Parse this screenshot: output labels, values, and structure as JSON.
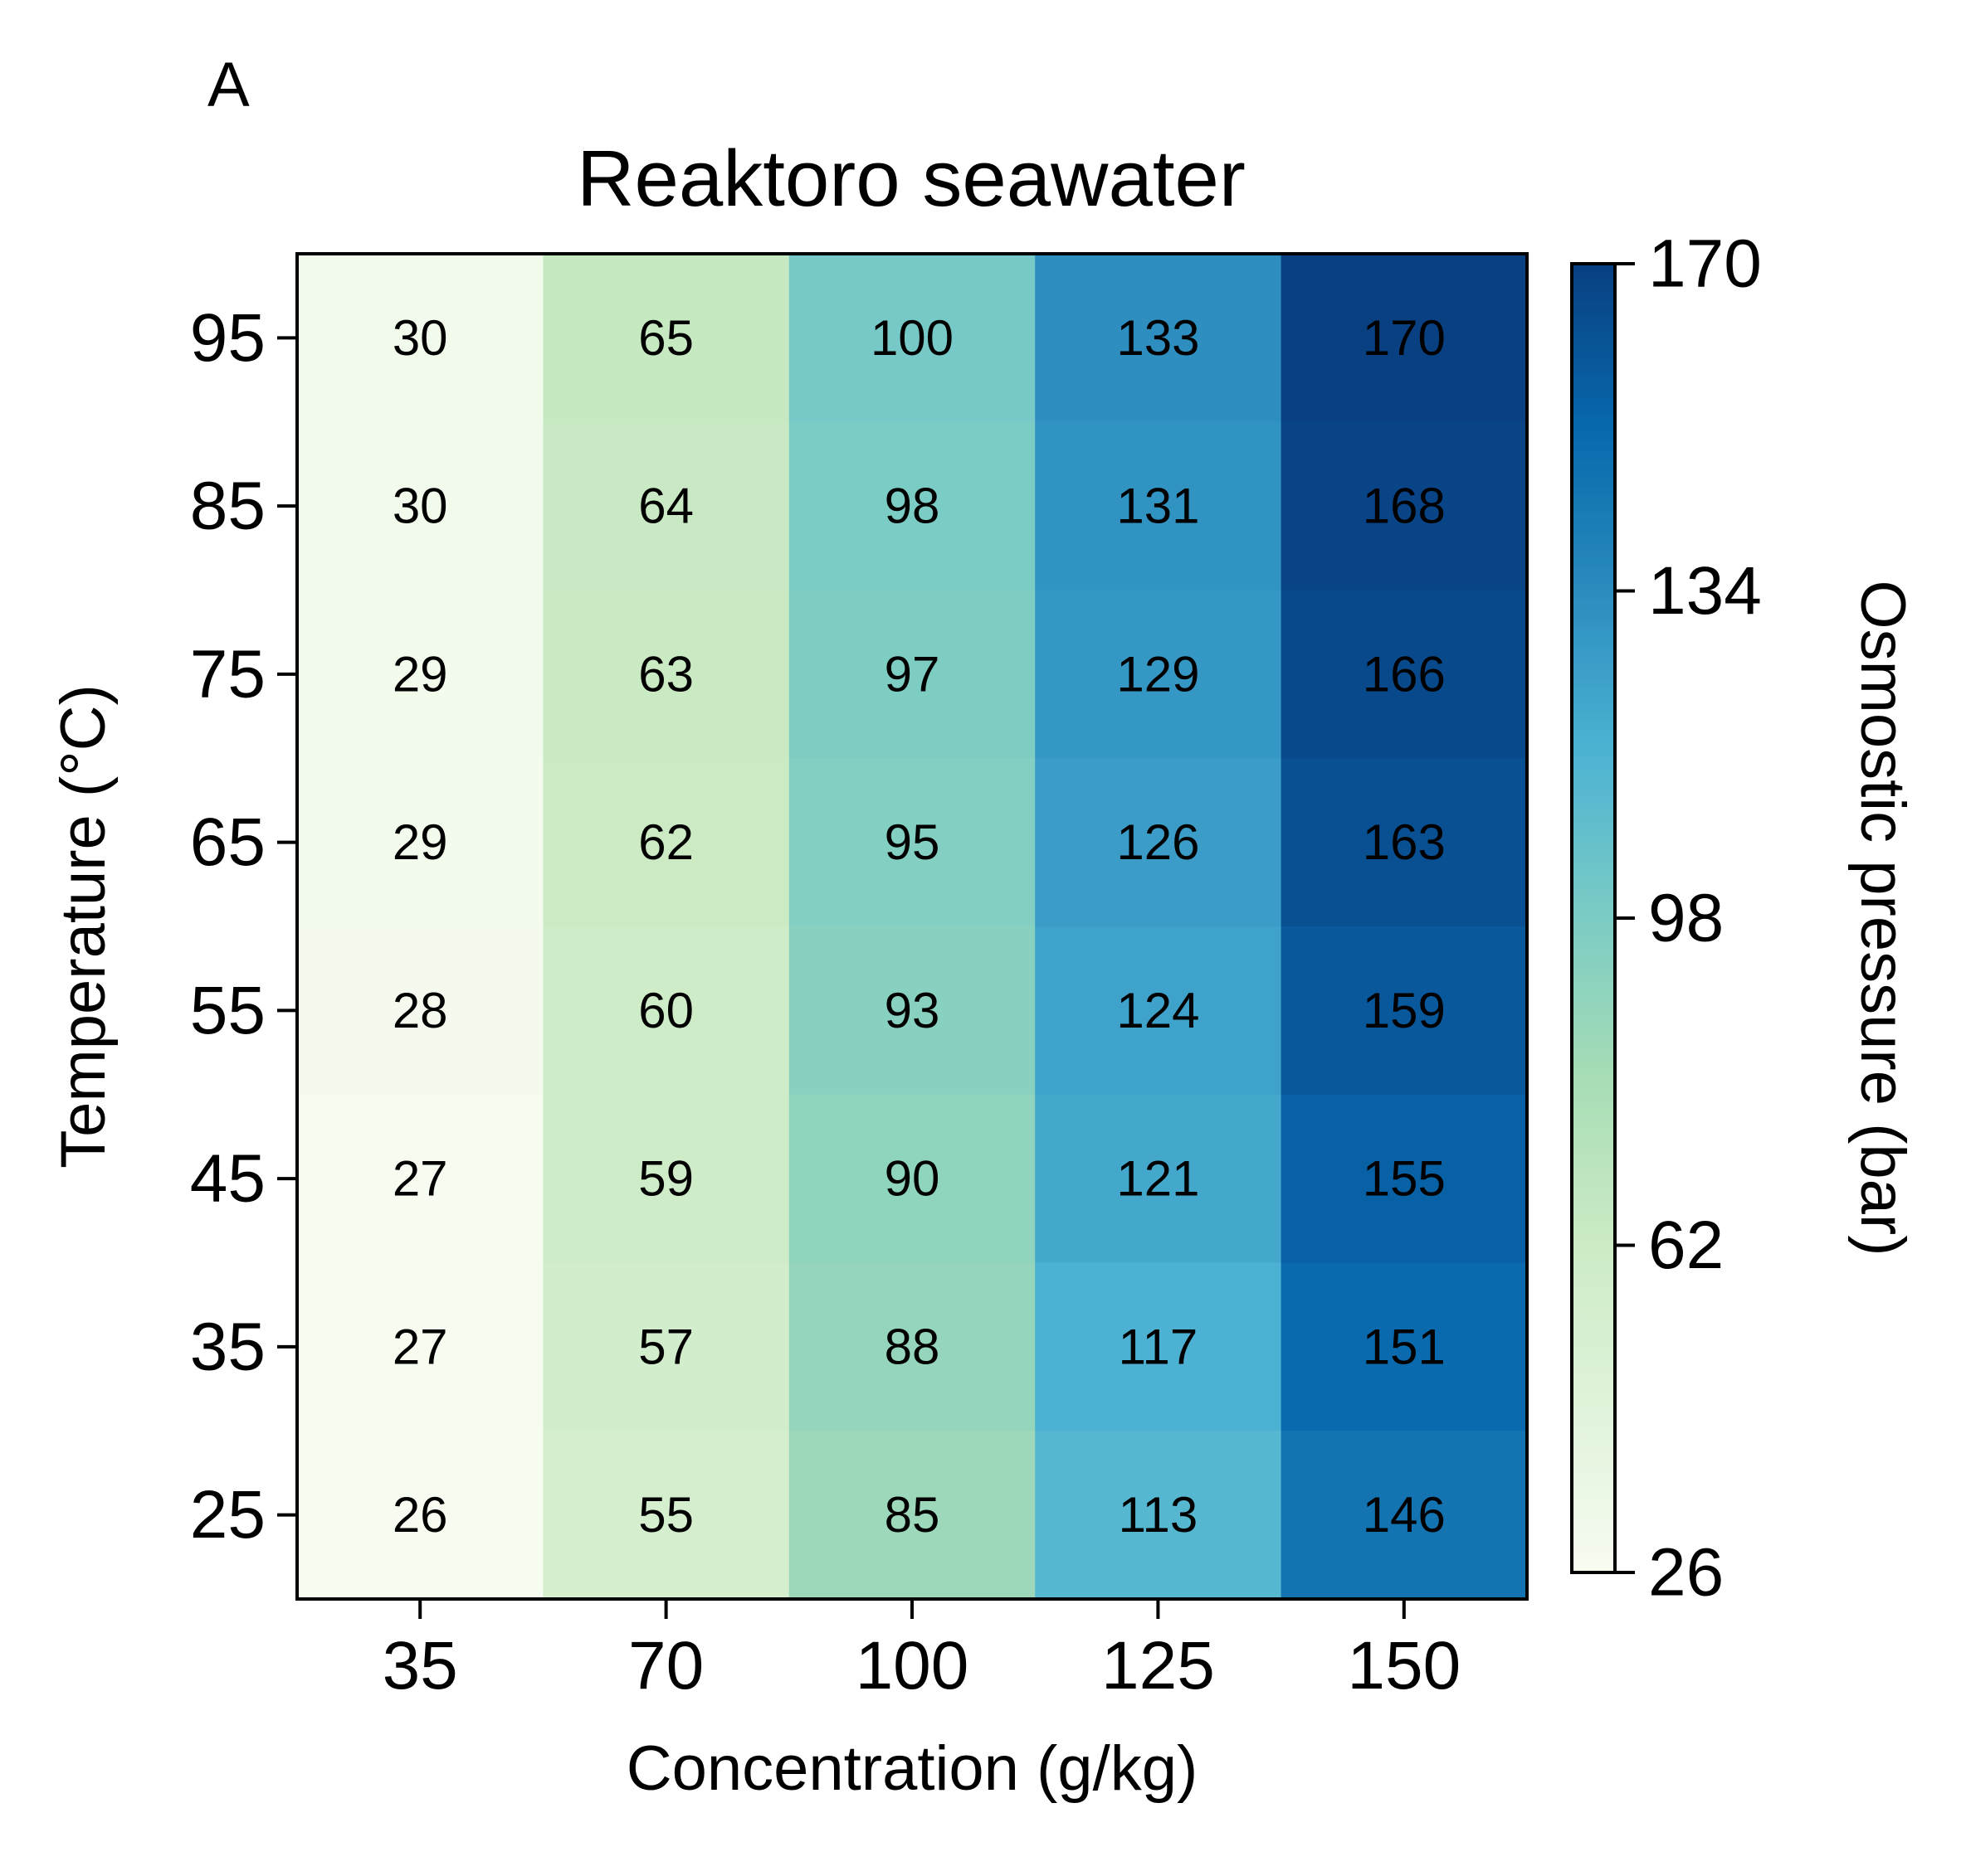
{
  "panel_letter": "A",
  "chart_data": {
    "type": "heatmap",
    "title": "Reaktoro seawater",
    "xlabel": "Concentration (g/kg)",
    "ylabel": "Temperature (°C)",
    "colorbar_label": "Osmostic pressure (bar)",
    "x": [
      "35",
      "70",
      "100",
      "125",
      "150"
    ],
    "y": [
      "95",
      "85",
      "75",
      "65",
      "55",
      "45",
      "35",
      "25"
    ],
    "values": [
      [
        30,
        65,
        100,
        133,
        170
      ],
      [
        30,
        64,
        98,
        131,
        168
      ],
      [
        29,
        63,
        97,
        129,
        166
      ],
      [
        29,
        62,
        95,
        126,
        163
      ],
      [
        28,
        60,
        93,
        124,
        159
      ],
      [
        27,
        59,
        90,
        121,
        155
      ],
      [
        27,
        57,
        88,
        117,
        151
      ],
      [
        26,
        55,
        85,
        113,
        146
      ]
    ],
    "colorbar_ticks": [
      26,
      62,
      98,
      134,
      170
    ],
    "vmin": 26,
    "vmax": 170,
    "colormap_stops": [
      "#f7fcf0",
      "#e0f3db",
      "#ccebc5",
      "#a8ddb5",
      "#7bccc4",
      "#4eb3d3",
      "#2b8cbe",
      "#0868ac",
      "#084081"
    ]
  }
}
